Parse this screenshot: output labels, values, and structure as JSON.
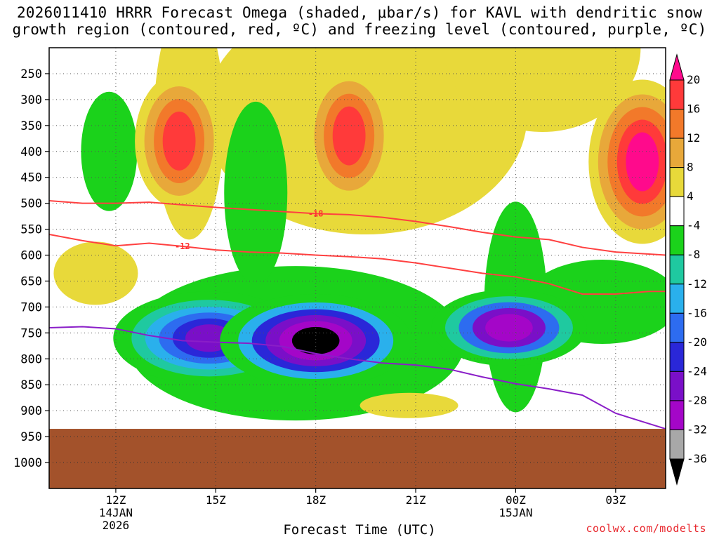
{
  "title_line1": "2026011410 HRRR Forecast Omega (shaded, μbar/s) for KAVL with dendritic snow",
  "title_line2": "growth region (contoured, red, ºC) and freezing level (contoured, purple, ºC)",
  "footer": "coolwx.com/modelts",
  "chart_data": {
    "type": "heatmap",
    "title": "2026011410 HRRR Forecast Omega (shaded, μbar/s) for KAVL with dendritic snow growth region (contoured, red, ºC) and freezing level (contoured, purple, ºC)",
    "xlabel": "Forecast Time (UTC)",
    "ylabel": "",
    "x_hours_range": [
      10,
      28.5
    ],
    "y_pressure_range": [
      200,
      1050
    ],
    "x_ticks": [
      {
        "hour": 12,
        "label": "12Z",
        "sub1": "14JAN",
        "sub2": "2026"
      },
      {
        "hour": 15,
        "label": "15Z",
        "sub1": "",
        "sub2": ""
      },
      {
        "hour": 18,
        "label": "18Z",
        "sub1": "",
        "sub2": ""
      },
      {
        "hour": 21,
        "label": "21Z",
        "sub1": "",
        "sub2": ""
      },
      {
        "hour": 24,
        "label": "00Z",
        "sub1": "15JAN",
        "sub2": ""
      },
      {
        "hour": 27,
        "label": "03Z",
        "sub1": "",
        "sub2": ""
      }
    ],
    "y_ticks": [
      {
        "p": 250,
        "label": "250"
      },
      {
        "p": 300,
        "label": "300"
      },
      {
        "p": 350,
        "label": "350"
      },
      {
        "p": 400,
        "label": "400"
      },
      {
        "p": 450,
        "label": "450"
      },
      {
        "p": 500,
        "label": "500"
      },
      {
        "p": 550,
        "label": "550"
      },
      {
        "p": 600,
        "label": "600"
      },
      {
        "p": 650,
        "label": "650"
      },
      {
        "p": 700,
        "label": "700"
      },
      {
        "p": 750,
        "label": "750"
      },
      {
        "p": 800,
        "label": "800"
      },
      {
        "p": 850,
        "label": "850"
      },
      {
        "p": 900,
        "label": "900"
      },
      {
        "p": 950,
        "label": "950"
      },
      {
        "p": 1000,
        "label": "1000"
      }
    ],
    "ground_pressure": 935,
    "colorbar": {
      "levels": [
        "20",
        "16",
        "12",
        "8",
        "4",
        "-4",
        "-8",
        "-12",
        "-16",
        "-20",
        "-24",
        "-28",
        "-32",
        "-36"
      ],
      "colors": [
        "#ff0a8c",
        "#ff3a3a",
        "#f2792a",
        "#e8a83a",
        "#e8d93a",
        "#ffffff",
        "#1bd21b",
        "#1fc9a0",
        "#2ab0ec",
        "#2d6cf0",
        "#2a27d8",
        "#7a0fc8",
        "#a406c8",
        "#a8a8a8"
      ]
    },
    "omega_blobs": [
      {
        "name": "mid-level negative blob 15-18Z",
        "t": 14.8,
        "p": 760,
        "levels": [
          -8,
          -12,
          -16,
          -20,
          -24,
          -28
        ]
      },
      {
        "name": "strong negative core near 18Z",
        "t": 18.0,
        "p": 765,
        "levels": [
          -8,
          -16,
          -24,
          -28,
          -32,
          -36
        ]
      },
      {
        "name": "negative blob 23-24Z",
        "t": 23.8,
        "p": 740,
        "levels": [
          -8,
          -12,
          -20,
          -28,
          -32
        ]
      },
      {
        "name": "upper-level positive core 19Z",
        "t": 19.0,
        "p": 370,
        "levels": [
          4,
          8,
          12,
          16
        ]
      },
      {
        "name": "upper-level positive 14Z",
        "t": 13.9,
        "p": 380,
        "levels": [
          4,
          8,
          12,
          16
        ]
      },
      {
        "name": "strong positive upper right 03Z",
        "t": 27.8,
        "p": 420,
        "levels": [
          4,
          8,
          12,
          16,
          20
        ]
      }
    ],
    "series": [
      {
        "name": "-18 ºC isotherm (red)",
        "label": "-18",
        "x": [
          10,
          11,
          12,
          13,
          14,
          15,
          16,
          17,
          18,
          19,
          20,
          21,
          22,
          23,
          24,
          25,
          26,
          27,
          28,
          28.5
        ],
        "y": [
          495,
          500,
          500,
          498,
          503,
          508,
          512,
          516,
          520,
          522,
          527,
          535,
          545,
          556,
          565,
          570,
          585,
          594,
          598,
          600
        ]
      },
      {
        "name": "-12 ºC isotherm (red)",
        "label": "-12",
        "x": [
          10,
          11,
          12,
          13,
          14,
          15,
          16,
          17,
          18,
          19,
          20,
          21,
          22,
          23,
          24,
          25,
          26,
          27,
          28,
          28.5
        ],
        "y": [
          560,
          572,
          582,
          577,
          583,
          590,
          594,
          596,
          600,
          603,
          607,
          615,
          625,
          635,
          642,
          655,
          675,
          675,
          670,
          670
        ]
      },
      {
        "name": "0 ºC freezing level (purple)",
        "label": "",
        "x": [
          10,
          11,
          12,
          13,
          14,
          15,
          16,
          17,
          18,
          19,
          20,
          21,
          22,
          23,
          24,
          25,
          26,
          27,
          28,
          28.5
        ],
        "y": [
          740,
          738,
          742,
          755,
          765,
          768,
          770,
          776,
          790,
          800,
          808,
          812,
          820,
          835,
          848,
          858,
          870,
          905,
          925,
          935
        ]
      }
    ]
  }
}
